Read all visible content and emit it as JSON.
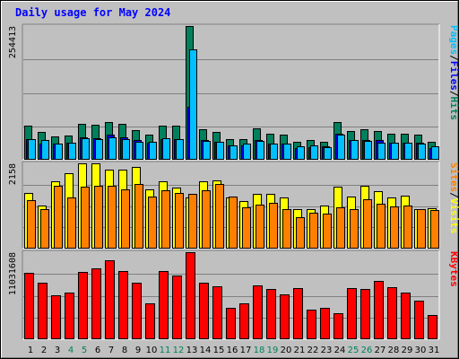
{
  "title": "Daily usage for May 2024",
  "colors": {
    "hits": "#00805c",
    "files": "#0000ff",
    "pages": "#00c0ff",
    "visits": "#ffff00",
    "sites": "#ff8000",
    "kbytes": "#ff0000",
    "weekend_day": "#00805c",
    "weekday": "#000000",
    "grid": "#808080",
    "panel_bg": "#c0c0c0"
  },
  "legend": {
    "top": [
      "Pages",
      "/",
      "Files",
      "/",
      "Hits"
    ],
    "mid": [
      "Sites",
      "/",
      "Visits"
    ],
    "bot": [
      "KBytes"
    ]
  },
  "chart_data": [
    {
      "type": "bar",
      "panel": "hits-files-pages",
      "ymax_label": "254413",
      "ylim": [
        0,
        254413
      ],
      "categories": [
        "1",
        "2",
        "3",
        "4",
        "5",
        "6",
        "7",
        "8",
        "9",
        "10",
        "11",
        "12",
        "13",
        "14",
        "15",
        "16",
        "17",
        "18",
        "19",
        "20",
        "21",
        "22",
        "23",
        "24",
        "25",
        "26",
        "27",
        "28",
        "29",
        "30",
        "31"
      ],
      "weekend_days": [
        "4",
        "5",
        "11",
        "12",
        "18",
        "19",
        "25",
        "26"
      ],
      "series": [
        {
          "name": "Hits",
          "values": [
            65000,
            53000,
            45000,
            46000,
            68000,
            67000,
            72000,
            68000,
            57000,
            47000,
            65000,
            65000,
            254413,
            58000,
            53000,
            40000,
            40000,
            59000,
            49000,
            48000,
            35000,
            38000,
            35000,
            71000,
            54000,
            58000,
            55000,
            50000,
            50000,
            48000,
            35000
          ]
        },
        {
          "name": "Files",
          "values": [
            40000,
            30000,
            30000,
            32000,
            42000,
            41000,
            47000,
            43000,
            38000,
            33000,
            40000,
            39000,
            100000,
            37000,
            35000,
            27000,
            28000,
            37000,
            30000,
            31000,
            23000,
            24000,
            25000,
            50000,
            37000,
            37000,
            37000,
            33000,
            33000,
            32000,
            22000
          ]
        },
        {
          "name": "Pages",
          "values": [
            39000,
            37000,
            31000,
            33000,
            41000,
            40000,
            42000,
            40000,
            34000,
            35000,
            41000,
            40000,
            210000,
            36000,
            35000,
            28000,
            30000,
            36000,
            30000,
            30000,
            25000,
            28000,
            24000,
            47000,
            37000,
            36000,
            33000,
            32000,
            32000,
            30000,
            25000
          ]
        }
      ]
    },
    {
      "type": "bar",
      "panel": "visits-sites",
      "ymax_label": "2158",
      "ylim": [
        0,
        2158
      ],
      "categories": [
        "1",
        "2",
        "3",
        "4",
        "5",
        "6",
        "7",
        "8",
        "9",
        "10",
        "11",
        "12",
        "13",
        "14",
        "15",
        "16",
        "17",
        "18",
        "19",
        "20",
        "21",
        "22",
        "23",
        "24",
        "25",
        "26",
        "27",
        "28",
        "29",
        "30",
        "31"
      ],
      "series": [
        {
          "name": "Visits",
          "values": [
            1400,
            1100,
            1700,
            1900,
            2158,
            2150,
            2000,
            2000,
            2060,
            1500,
            1700,
            1550,
            1300,
            1700,
            1720,
            1300,
            1200,
            1380,
            1380,
            1290,
            1000,
            1000,
            1100,
            1560,
            1310,
            1600,
            1460,
            1300,
            1340,
            1000,
            1020
          ]
        },
        {
          "name": "Sites",
          "values": [
            1230,
            1010,
            1580,
            1290,
            1560,
            1600,
            1590,
            1510,
            1630,
            1320,
            1470,
            1400,
            1380,
            1470,
            1630,
            1310,
            1050,
            1110,
            1160,
            995,
            787,
            913,
            882,
            1040,
            1010,
            1260,
            1130,
            1070,
            1090,
            1000,
            982
          ]
        }
      ]
    },
    {
      "type": "bar",
      "panel": "kbytes",
      "ymax_label": "11031608",
      "ylim": [
        0,
        11031608
      ],
      "categories": [
        "1",
        "2",
        "3",
        "4",
        "5",
        "6",
        "7",
        "8",
        "9",
        "10",
        "11",
        "12",
        "13",
        "14",
        "15",
        "16",
        "17",
        "18",
        "19",
        "20",
        "21",
        "22",
        "23",
        "24",
        "25",
        "26",
        "27",
        "28",
        "29",
        "30",
        "31"
      ],
      "series": [
        {
          "name": "KBytes",
          "values": [
            8400000,
            7200000,
            5600000,
            5950000,
            8500000,
            9000000,
            10000000,
            8600000,
            7200000,
            4600000,
            8600000,
            8100000,
            11031608,
            7150000,
            6700000,
            3950000,
            4600000,
            6850000,
            6400000,
            5650000,
            6450000,
            3700000,
            3950000,
            3350000,
            6450000,
            6350000,
            7400000,
            6550000,
            5900000,
            4900000,
            3050000
          ]
        }
      ]
    }
  ]
}
